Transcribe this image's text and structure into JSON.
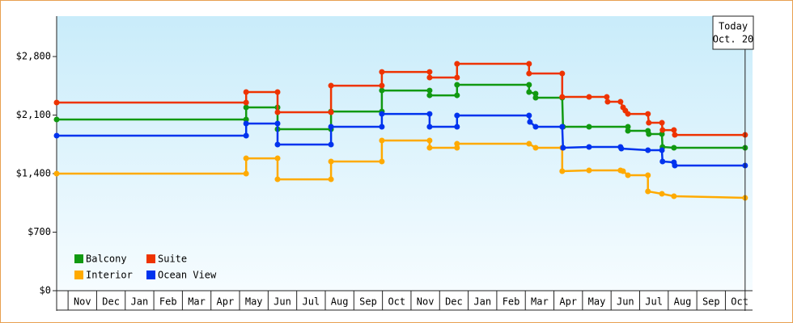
{
  "chart_data": {
    "type": "line",
    "ylim": [
      0,
      3283
    ],
    "yticks": [
      {
        "value": 0,
        "label": "$0"
      },
      {
        "value": 700,
        "label": "$700"
      },
      {
        "value": 1400,
        "label": "$1,400"
      },
      {
        "value": 2100,
        "label": "$2,100"
      },
      {
        "value": 2800,
        "label": "$2,800"
      }
    ],
    "xlim": [
      -0.4,
      23.95
    ],
    "xticks": [
      {
        "value": 0.5,
        "label": "Nov"
      },
      {
        "value": 1.5,
        "label": "Dec"
      },
      {
        "value": 2.5,
        "label": "Jan"
      },
      {
        "value": 3.5,
        "label": "Feb"
      },
      {
        "value": 4.5,
        "label": "Mar"
      },
      {
        "value": 5.5,
        "label": "Apr"
      },
      {
        "value": 6.5,
        "label": "May"
      },
      {
        "value": 7.5,
        "label": "Jun"
      },
      {
        "value": 8.5,
        "label": "Jul"
      },
      {
        "value": 9.5,
        "label": "Aug"
      },
      {
        "value": 10.5,
        "label": "Sep"
      },
      {
        "value": 11.5,
        "label": "Oct"
      },
      {
        "value": 12.5,
        "label": "Nov"
      },
      {
        "value": 13.5,
        "label": "Dec"
      },
      {
        "value": 14.5,
        "label": "Jan"
      },
      {
        "value": 15.5,
        "label": "Feb"
      },
      {
        "value": 16.5,
        "label": "Mar"
      },
      {
        "value": 17.5,
        "label": "Apr"
      },
      {
        "value": 18.5,
        "label": "May"
      },
      {
        "value": 19.5,
        "label": "Jun"
      },
      {
        "value": 20.5,
        "label": "Jul"
      },
      {
        "value": 21.5,
        "label": "Aug"
      },
      {
        "value": 22.5,
        "label": "Sep"
      },
      {
        "value": 23.5,
        "label": "Oct"
      }
    ],
    "today": {
      "x": 23.69,
      "title": "Today",
      "date": "Oct. 20"
    },
    "series": [
      {
        "name": "Balcony",
        "color": "#119911",
        "x": [
          -0.4,
          6.23,
          6.23,
          7.33,
          7.33,
          9.2,
          9.2,
          10.98,
          10.98,
          12.65,
          12.65,
          13.61,
          13.61,
          16.13,
          16.13,
          16.36,
          16.36,
          17.29,
          17.32,
          18.23,
          19.59,
          19.59,
          20.29,
          20.32,
          20.78,
          20.8,
          21.2,
          23.69
        ],
        "values": [
          2047,
          2047,
          2192,
          2192,
          1931,
          1931,
          2143,
          2143,
          2394,
          2394,
          2336,
          2336,
          2462,
          2462,
          2375,
          2356,
          2308,
          2308,
          1960,
          1960,
          1960,
          1912,
          1912,
          1873,
          1873,
          1719,
          1709,
          1709
        ]
      },
      {
        "name": "Suite",
        "color": "#ee3300",
        "x": [
          -0.4,
          6.23,
          6.23,
          7.33,
          7.33,
          9.2,
          9.2,
          10.98,
          10.98,
          12.65,
          12.65,
          13.61,
          13.61,
          16.13,
          16.13,
          17.29,
          17.29,
          18.23,
          18.85,
          18.88,
          19.33,
          19.42,
          19.5,
          19.59,
          20.29,
          20.32,
          20.78,
          20.8,
          21.2,
          21.23,
          23.69
        ],
        "values": [
          2250,
          2250,
          2375,
          2375,
          2134,
          2134,
          2452,
          2452,
          2616,
          2616,
          2549,
          2549,
          2713,
          2713,
          2597,
          2597,
          2317,
          2317,
          2317,
          2259,
          2259,
          2192,
          2153,
          2114,
          2114,
          2008,
          2008,
          1921,
          1921,
          1863,
          1863
        ]
      },
      {
        "name": "Interior",
        "color": "#ffaa00",
        "x": [
          -0.4,
          6.23,
          6.23,
          7.33,
          7.33,
          9.2,
          9.2,
          10.98,
          10.98,
          12.65,
          12.65,
          13.61,
          13.61,
          16.13,
          16.36,
          17.29,
          17.29,
          18.23,
          19.33,
          19.42,
          19.59,
          20.29,
          20.29,
          20.78,
          21.2,
          23.69
        ],
        "values": [
          1400,
          1400,
          1583,
          1583,
          1332,
          1332,
          1545,
          1545,
          1796,
          1796,
          1709,
          1709,
          1757,
          1757,
          1709,
          1709,
          1429,
          1439,
          1439,
          1429,
          1381,
          1381,
          1188,
          1159,
          1130,
          1110
        ]
      },
      {
        "name": "Ocean View",
        "color": "#0033ee",
        "x": [
          -0.4,
          6.23,
          6.23,
          7.33,
          7.33,
          9.2,
          9.2,
          10.98,
          10.98,
          12.65,
          12.65,
          13.61,
          13.61,
          16.13,
          16.16,
          16.36,
          17.29,
          17.32,
          18.23,
          19.33,
          19.36,
          20.29,
          20.78,
          20.8,
          21.2,
          21.23,
          23.69
        ],
        "values": [
          1854,
          1854,
          1999,
          1999,
          1748,
          1748,
          1960,
          1960,
          2114,
          2114,
          1960,
          1960,
          2095,
          2095,
          2018,
          1960,
          1960,
          1709,
          1719,
          1719,
          1699,
          1680,
          1680,
          1545,
          1535,
          1497,
          1497
        ]
      }
    ]
  }
}
